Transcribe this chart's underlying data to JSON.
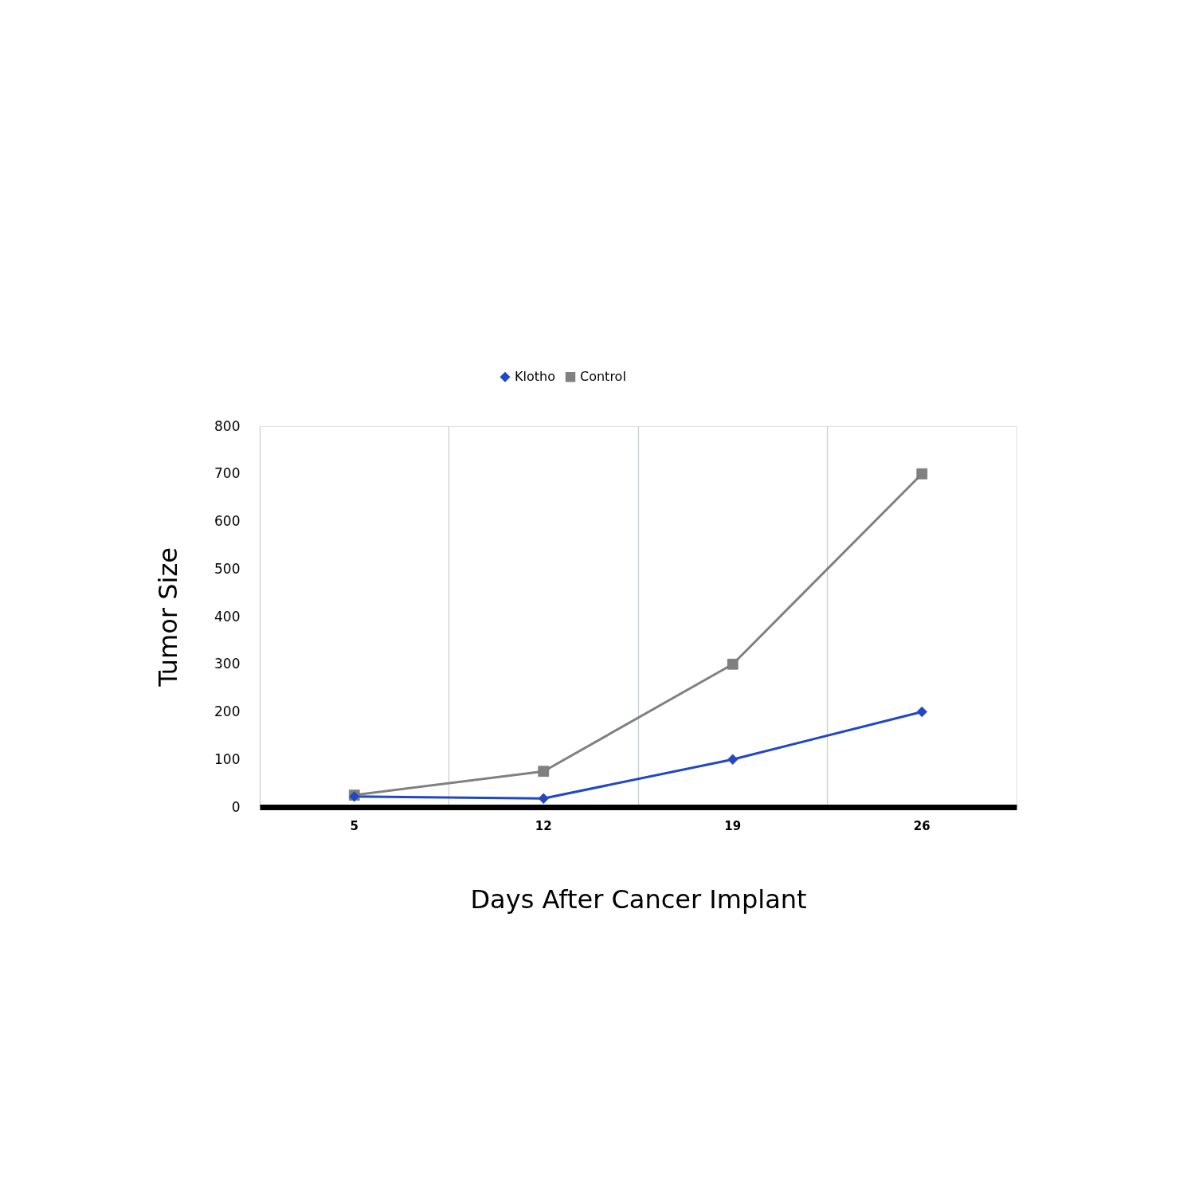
{
  "chart_data": {
    "type": "line",
    "xlabel": "Days After Cancer Implant",
    "ylabel": "Tumor Size",
    "categories": [
      "5",
      "12",
      "19",
      "26"
    ],
    "series": [
      {
        "name": "Klotho",
        "color": "#1f47c8",
        "marker": "diamond",
        "values": [
          22,
          18,
          100,
          200
        ]
      },
      {
        "name": "Control",
        "color": "#808080",
        "marker": "square",
        "values": [
          25,
          75,
          300,
          700
        ]
      }
    ],
    "ylim": [
      0,
      800
    ],
    "yticks": [
      0,
      100,
      200,
      300,
      400,
      500,
      600,
      700,
      800
    ],
    "grid": "x",
    "legend": "top",
    "line_style": "solid"
  }
}
